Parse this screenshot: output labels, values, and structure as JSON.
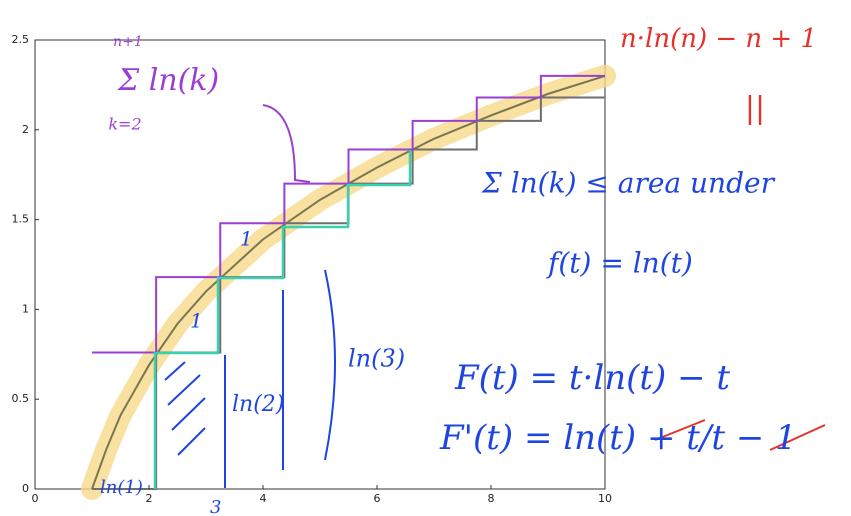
{
  "chart_data": {
    "type": "line",
    "xlim": [
      0,
      10
    ],
    "ylim": [
      0,
      2.5
    ],
    "xticks": [
      0,
      2,
      4,
      6,
      8,
      10
    ],
    "yticks": [
      0,
      0.5,
      1,
      1.5,
      2,
      2.5
    ],
    "highlight_color": "#f7d98a",
    "series": [
      {
        "color": "#7a7650",
        "style": "line",
        "x": [
          1,
          1.25,
          1.5,
          2,
          2.5,
          3,
          4,
          5,
          6,
          7,
          8,
          9,
          10
        ],
        "values": [
          0,
          0.22,
          0.41,
          0.69,
          0.92,
          1.1,
          1.39,
          1.61,
          1.79,
          1.95,
          2.08,
          2.2,
          2.3
        ]
      },
      {
        "color": "#6e6e6e",
        "style": "steps",
        "x": [
          1,
          2.125,
          3.25,
          4.375,
          5.5,
          6.625,
          7.75,
          8.875,
          10
        ],
        "values": [
          0,
          0.76,
          1.18,
          1.48,
          1.7,
          1.89,
          2.05,
          2.18,
          2.18
        ]
      },
      {
        "color": "#9b3fd4",
        "style": "steps",
        "x": [
          1,
          2.125,
          3.25,
          4.375,
          5.5,
          6.625,
          7.75,
          8.875,
          10
        ],
        "values": [
          0.76,
          1.18,
          1.48,
          1.7,
          1.89,
          2.05,
          2.18,
          2.3,
          2.3
        ]
      }
    ],
    "annotations": [
      {
        "text": "n·ln(n) − n + 1",
        "color": "#e8302a"
      },
      {
        "text": "||",
        "color": "#e8302a"
      },
      {
        "text": "n+1",
        "color": "#9b3fd4"
      },
      {
        "text": "Σ ln(k)",
        "color": "#9b3fd4"
      },
      {
        "text": "k=2",
        "color": "#9b3fd4"
      },
      {
        "text": "Σ ln(k) ≤ area under",
        "color": "#1f45e0"
      },
      {
        "text": "f(t) = ln(t)",
        "color": "#1f45e0"
      },
      {
        "text": "F(t) = t·ln(t) − t",
        "color": "#1f45e0"
      },
      {
        "text": "F'(t) = ln(t) + t/t − 1",
        "color": "#1f45e0"
      },
      {
        "text": "ln(3)",
        "color": "#1f45e0"
      },
      {
        "text": "ln(2)",
        "color": "#1f45e0"
      },
      {
        "text": "ln(1)",
        "color": "#1f45e0"
      },
      {
        "text": "1",
        "color": "#1f45e0"
      },
      {
        "text": "1",
        "color": "#1f45e0"
      },
      {
        "text": "3",
        "color": "#1f45e0"
      }
    ]
  }
}
